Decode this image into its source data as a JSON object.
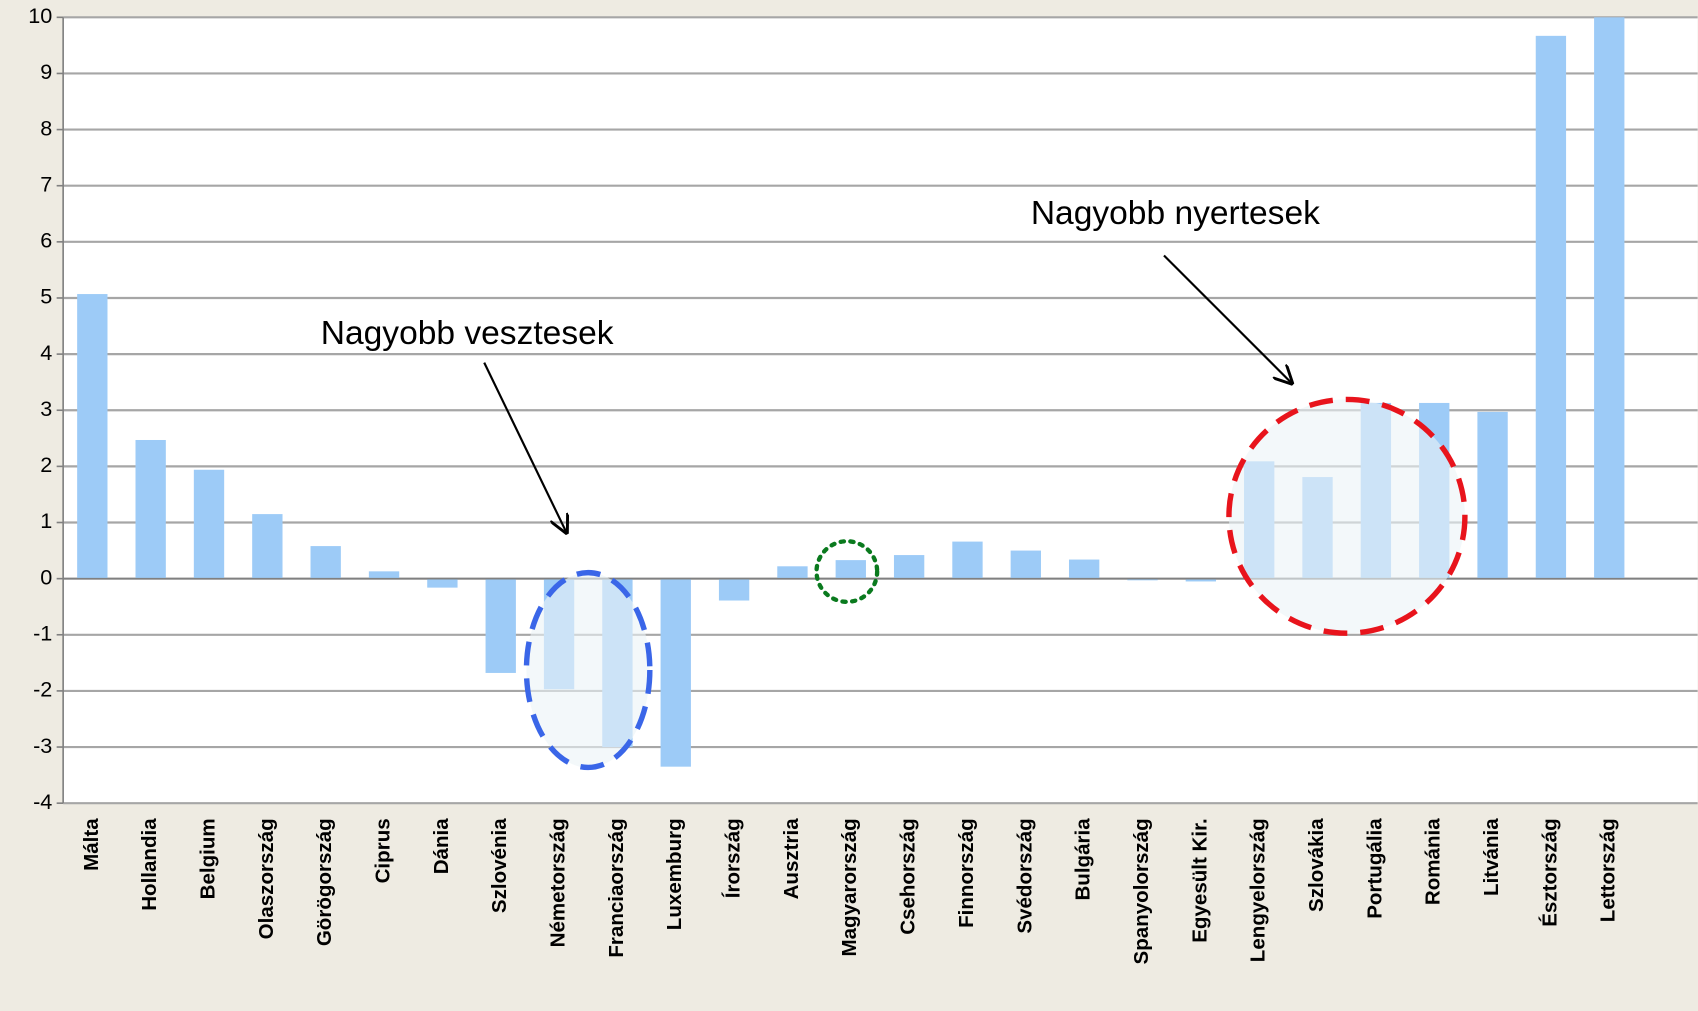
{
  "chart_data": {
    "type": "bar",
    "categories": [
      "Málta",
      "Hollandia",
      "Belgium",
      "Olaszország",
      "Görögország",
      "Ciprus",
      "Dánia",
      "Szlovénia",
      "Németország",
      "Franciaország",
      "Luxemburg",
      "Írország",
      "Ausztria",
      "Magyarország",
      "Csehország",
      "Finnország",
      "Svédország",
      "Bulgária",
      "Spanyolország",
      "Egyesült Kir.",
      "Lengyelország",
      "Szlovákia",
      "Portugália",
      "Románia",
      "Litvánia",
      "Észtország",
      "Lettország"
    ],
    "values": [
      5.07,
      2.47,
      1.94,
      1.15,
      0.58,
      0.13,
      -0.16,
      -1.68,
      -1.97,
      -3.0,
      -3.35,
      -0.39,
      0.22,
      0.33,
      0.42,
      0.66,
      0.5,
      0.34,
      -0.03,
      -0.05,
      2.09,
      1.81,
      3.13,
      3.13,
      2.97,
      9.67,
      10.0
    ],
    "color": "#9dcbf7",
    "ylim": [
      -4,
      10
    ],
    "yticks": [
      -4,
      -3,
      -2,
      -1,
      0,
      1,
      2,
      3,
      4,
      5,
      6,
      7,
      8,
      9,
      10
    ],
    "grid": true,
    "annotations": [
      "Nagyobb vesztesek",
      "Nagyobb nyertesek"
    ]
  }
}
